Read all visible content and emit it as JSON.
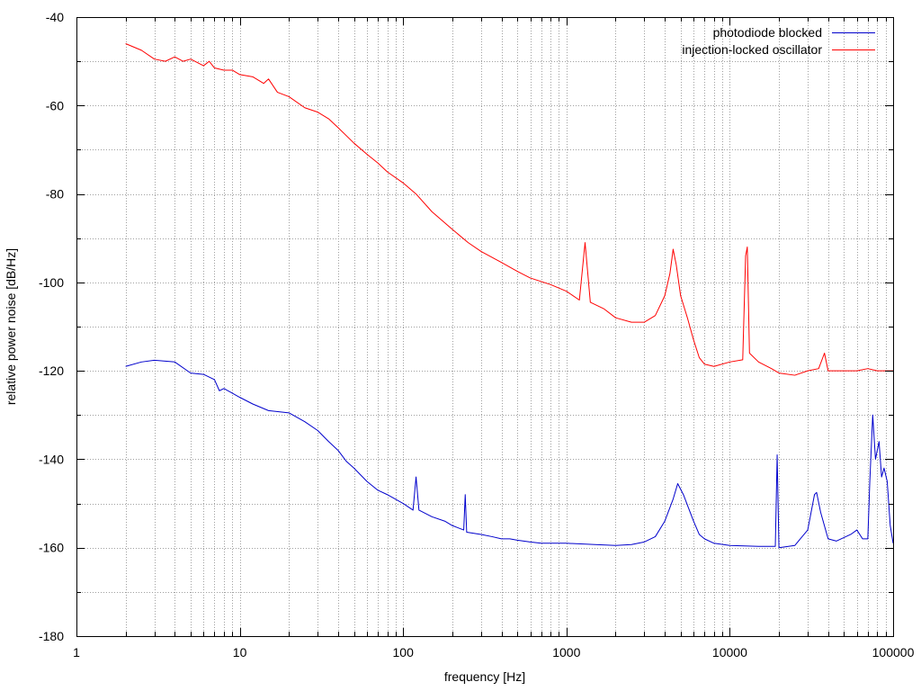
{
  "chart_data": {
    "type": "line",
    "title": "",
    "xlabel": "frequency [Hz]",
    "ylabel": "relative power noise [dB/Hz]",
    "x_scale": "log",
    "xlim": [
      1,
      100000
    ],
    "ylim": [
      -180,
      -40
    ],
    "x_ticks": [
      1,
      10,
      100,
      1000,
      10000,
      100000
    ],
    "x_tick_labels": [
      "1",
      "10",
      "100",
      "1000",
      "10000",
      "100000"
    ],
    "y_ticks": [
      -180,
      -160,
      -140,
      -120,
      -100,
      -80,
      -60,
      -40
    ],
    "y_tick_labels": [
      "-180",
      "-160",
      "-140",
      "-120",
      "-100",
      "-80",
      "-60",
      "-40"
    ],
    "grid": true,
    "legend_position": "top-right",
    "series": [
      {
        "name": "photodiode blocked",
        "color": "#0000cc",
        "points": [
          [
            2,
            -119
          ],
          [
            2.5,
            -118
          ],
          [
            3,
            -117.6
          ],
          [
            4,
            -118
          ],
          [
            5,
            -120.5
          ],
          [
            6,
            -120.8
          ],
          [
            7,
            -122
          ],
          [
            7.5,
            -124.5
          ],
          [
            8,
            -124
          ],
          [
            10,
            -126
          ],
          [
            12,
            -127.5
          ],
          [
            15,
            -129
          ],
          [
            20,
            -129.5
          ],
          [
            25,
            -131.5
          ],
          [
            30,
            -133.5
          ],
          [
            35,
            -136
          ],
          [
            40,
            -138
          ],
          [
            45,
            -140.5
          ],
          [
            50,
            -142
          ],
          [
            60,
            -145
          ],
          [
            70,
            -147
          ],
          [
            80,
            -148
          ],
          [
            100,
            -150
          ],
          [
            115,
            -151.5
          ],
          [
            120,
            -144
          ],
          [
            125,
            -151.5
          ],
          [
            150,
            -153
          ],
          [
            180,
            -154
          ],
          [
            200,
            -155
          ],
          [
            235,
            -156
          ],
          [
            240,
            -148
          ],
          [
            245,
            -156.5
          ],
          [
            300,
            -157
          ],
          [
            350,
            -157.5
          ],
          [
            400,
            -158
          ],
          [
            450,
            -158
          ],
          [
            500,
            -158.3
          ],
          [
            600,
            -158.7
          ],
          [
            700,
            -159
          ],
          [
            800,
            -159
          ],
          [
            1000,
            -159
          ],
          [
            1500,
            -159.3
          ],
          [
            2000,
            -159.5
          ],
          [
            2500,
            -159.3
          ],
          [
            3000,
            -158.7
          ],
          [
            3500,
            -157.5
          ],
          [
            4000,
            -154
          ],
          [
            4500,
            -149
          ],
          [
            4800,
            -145.5
          ],
          [
            5200,
            -148
          ],
          [
            6000,
            -154
          ],
          [
            6500,
            -157
          ],
          [
            7000,
            -158
          ],
          [
            8000,
            -159
          ],
          [
            10000,
            -159.5
          ],
          [
            15000,
            -159.7
          ],
          [
            19000,
            -159.7
          ],
          [
            19500,
            -139
          ],
          [
            20000,
            -160
          ],
          [
            25000,
            -159.5
          ],
          [
            30000,
            -156
          ],
          [
            33000,
            -148
          ],
          [
            34000,
            -147.5
          ],
          [
            36000,
            -152
          ],
          [
            40000,
            -158
          ],
          [
            45000,
            -158.5
          ],
          [
            55000,
            -157
          ],
          [
            60000,
            -156
          ],
          [
            65000,
            -158
          ],
          [
            70000,
            -158
          ],
          [
            72000,
            -145
          ],
          [
            75000,
            -130
          ],
          [
            78000,
            -140
          ],
          [
            82000,
            -136
          ],
          [
            85000,
            -144
          ],
          [
            88000,
            -142
          ],
          [
            92000,
            -145
          ],
          [
            96000,
            -155
          ],
          [
            100000,
            -159
          ]
        ]
      },
      {
        "name": "injection-locked oscillator",
        "color": "#ff0000",
        "points": [
          [
            2,
            -46
          ],
          [
            2.5,
            -47.5
          ],
          [
            3,
            -49.5
          ],
          [
            3.5,
            -50
          ],
          [
            4,
            -49
          ],
          [
            4.5,
            -50
          ],
          [
            5,
            -49.5
          ],
          [
            6,
            -51
          ],
          [
            6.5,
            -50
          ],
          [
            7,
            -51.5
          ],
          [
            8,
            -52
          ],
          [
            9,
            -52
          ],
          [
            10,
            -53
          ],
          [
            12,
            -53.5
          ],
          [
            14,
            -55
          ],
          [
            15,
            -54
          ],
          [
            17,
            -57
          ],
          [
            20,
            -58
          ],
          [
            25,
            -60.5
          ],
          [
            30,
            -61.5
          ],
          [
            35,
            -63
          ],
          [
            40,
            -65
          ],
          [
            50,
            -68.5
          ],
          [
            60,
            -71
          ],
          [
            70,
            -73
          ],
          [
            80,
            -75
          ],
          [
            100,
            -77.5
          ],
          [
            120,
            -80
          ],
          [
            150,
            -84
          ],
          [
            200,
            -88
          ],
          [
            250,
            -91
          ],
          [
            300,
            -93
          ],
          [
            400,
            -95.5
          ],
          [
            500,
            -97.5
          ],
          [
            600,
            -99
          ],
          [
            800,
            -100.5
          ],
          [
            1000,
            -102
          ],
          [
            1200,
            -104
          ],
          [
            1300,
            -91
          ],
          [
            1400,
            -104.5
          ],
          [
            1700,
            -106
          ],
          [
            2000,
            -108
          ],
          [
            2500,
            -109
          ],
          [
            3000,
            -109
          ],
          [
            3500,
            -107.5
          ],
          [
            4000,
            -103
          ],
          [
            4300,
            -98
          ],
          [
            4500,
            -92.5
          ],
          [
            4700,
            -96
          ],
          [
            5000,
            -103
          ],
          [
            5500,
            -108
          ],
          [
            6000,
            -113
          ],
          [
            6500,
            -117
          ],
          [
            7000,
            -118.5
          ],
          [
            8000,
            -119
          ],
          [
            10000,
            -118
          ],
          [
            12000,
            -117.5
          ],
          [
            12500,
            -94
          ],
          [
            12800,
            -92
          ],
          [
            13200,
            -116
          ],
          [
            15000,
            -118
          ],
          [
            18000,
            -119.5
          ],
          [
            20000,
            -120.5
          ],
          [
            25000,
            -121
          ],
          [
            30000,
            -120
          ],
          [
            35000,
            -119.5
          ],
          [
            38000,
            -116
          ],
          [
            40000,
            -120
          ],
          [
            50000,
            -120
          ],
          [
            60000,
            -120
          ],
          [
            70000,
            -119.5
          ],
          [
            80000,
            -120
          ],
          [
            90000,
            -120
          ],
          [
            100000,
            -120
          ]
        ]
      }
    ]
  }
}
